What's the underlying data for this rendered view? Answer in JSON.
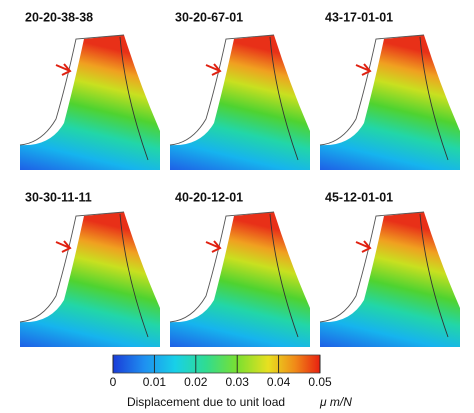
{
  "panels": [
    {
      "label": "20-20-38-38"
    },
    {
      "label": "30-20-67-01"
    },
    {
      "label": "43-17-01-01"
    },
    {
      "label": "30-30-11-11"
    },
    {
      "label": "40-20-12-01"
    },
    {
      "label": "45-12-01-01"
    }
  ],
  "colorbar": {
    "lim": [
      0,
      0.05
    ],
    "ticks": [
      0,
      0.01,
      0.02,
      0.03,
      0.04,
      0.05
    ],
    "label": "Displacement due to unit load",
    "unit": "μ m/N"
  }
}
